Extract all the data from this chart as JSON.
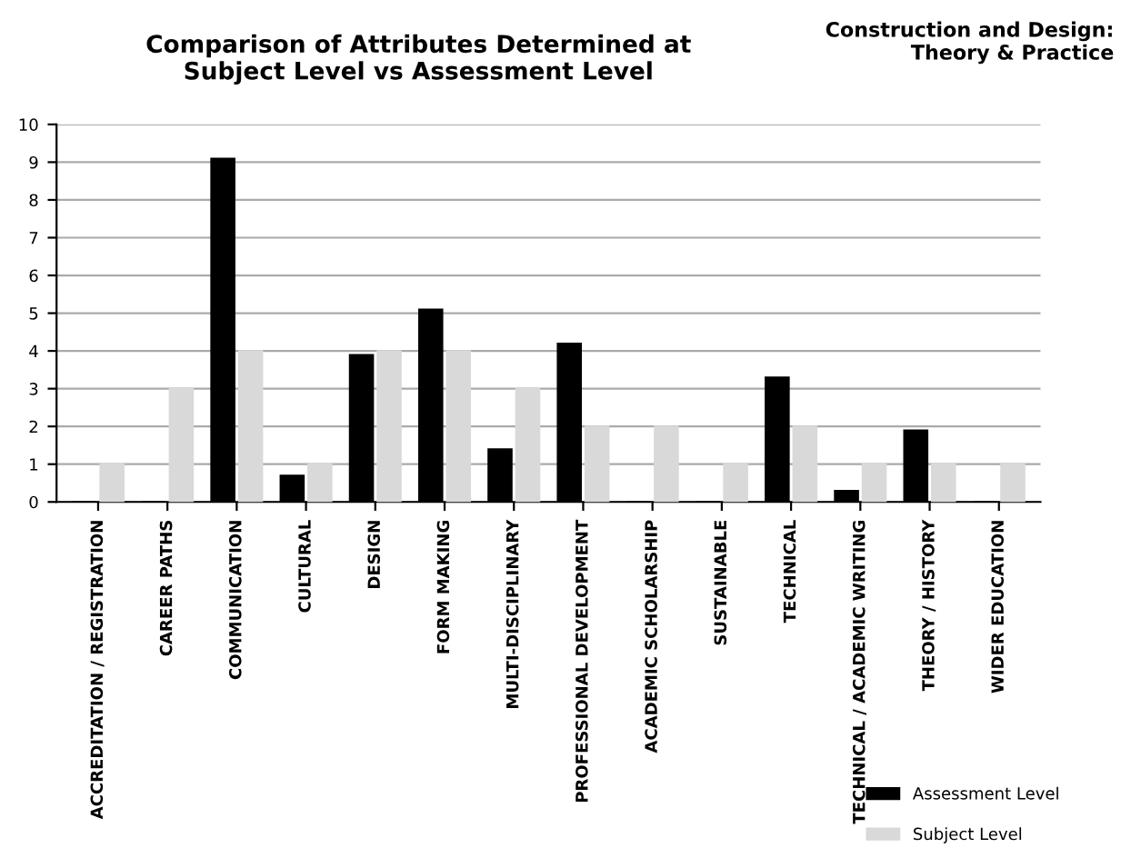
{
  "chart_data": {
    "type": "bar",
    "title": "Comparison of Attributes Determined at\nSubject Level vs Assessment Level",
    "subtitle": "Construction and Design:\nTheory & Practice",
    "categories": [
      "ACCREDITATION / REGISTRATION",
      "CAREER PATHS",
      "COMMUNICATION",
      "CULTURAL",
      "DESIGN",
      "FORM MAKING",
      "MULTI-DISCIPLINARY",
      "PROFESSIONAL DEVELOPMENT",
      "ACADEMIC SCHOLARSHIP",
      "SUSTAINABLE",
      "TECHNICAL",
      "TECHNICAL / ACADEMIC WRITING",
      "THEORY / HISTORY",
      "WIDER EDUCATION"
    ],
    "series": [
      {
        "name": "Assessment Level",
        "color": "#000000",
        "values": [
          0,
          0,
          9.1,
          0.7,
          3.9,
          5.1,
          1.4,
          4.2,
          0,
          0,
          3.3,
          0.3,
          1.9,
          0
        ]
      },
      {
        "name": "Subject Level",
        "color": "#d9d9d9",
        "values": [
          1,
          3,
          4,
          1,
          4,
          4,
          3,
          2,
          2,
          1,
          2,
          1,
          1,
          1
        ]
      }
    ],
    "ylim": [
      0,
      10
    ],
    "yticks": [
      0,
      1,
      2,
      3,
      4,
      5,
      6,
      7,
      8,
      9,
      10
    ],
    "grid": "y",
    "legend": "bottom right"
  }
}
